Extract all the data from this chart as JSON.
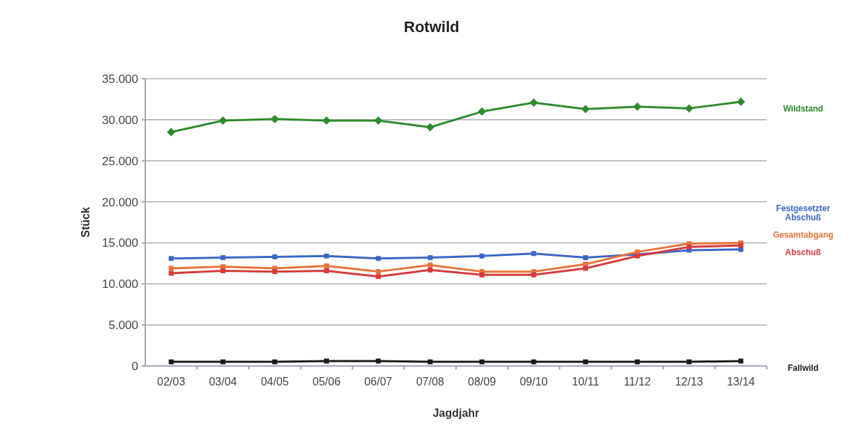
{
  "chart_data": {
    "type": "line",
    "title": "Rotwild",
    "xlabel": "Jagdjahr",
    "ylabel": "Stück",
    "categories": [
      "02/03",
      "03/04",
      "04/05",
      "05/06",
      "06/07",
      "07/08",
      "08/09",
      "09/10",
      "10/11",
      "11/12",
      "12/13",
      "13/14"
    ],
    "series": [
      {
        "name": "Wildstand",
        "color": "#2e8b2e",
        "marker": "diamond",
        "values": [
          28500,
          29900,
          30100,
          29900,
          29900,
          29100,
          31000,
          32100,
          31300,
          31600,
          31400,
          32200
        ]
      },
      {
        "name": "Festgesetzter Abschuß",
        "color": "#3a66c8",
        "marker": "square",
        "values": [
          13100,
          13200,
          13300,
          13400,
          13100,
          13200,
          13400,
          13700,
          13200,
          13600,
          14100,
          14200
        ]
      },
      {
        "name": "Gesamtabgang",
        "color": "#e8733a",
        "marker": "square",
        "values": [
          11900,
          12100,
          11900,
          12200,
          11500,
          12300,
          11500,
          11500,
          12400,
          13900,
          14900,
          15000
        ]
      },
      {
        "name": "Abschuß",
        "color": "#d63a3a",
        "marker": "square",
        "values": [
          11300,
          11600,
          11500,
          11600,
          10900,
          11700,
          11100,
          11100,
          11900,
          13400,
          14500,
          14700
        ]
      },
      {
        "name": "Fallwild",
        "color": "#1a1a1a",
        "marker": "square",
        "values": [
          500,
          500,
          500,
          600,
          600,
          500,
          500,
          500,
          500,
          500,
          500,
          600
        ]
      }
    ],
    "ylim": [
      0,
      35000
    ],
    "yticks": [
      {
        "value": 0,
        "label": "0"
      },
      {
        "value": 5000,
        "label": "5.000"
      },
      {
        "value": 10000,
        "label": "10.000"
      },
      {
        "value": 15000,
        "label": "15.000"
      },
      {
        "value": 20000,
        "label": "20.000"
      },
      {
        "value": 25000,
        "label": "25.000"
      },
      {
        "value": 30000,
        "label": "30.000"
      },
      {
        "value": 35000,
        "label": "35.000"
      }
    ],
    "grid": "y",
    "legend": false
  }
}
